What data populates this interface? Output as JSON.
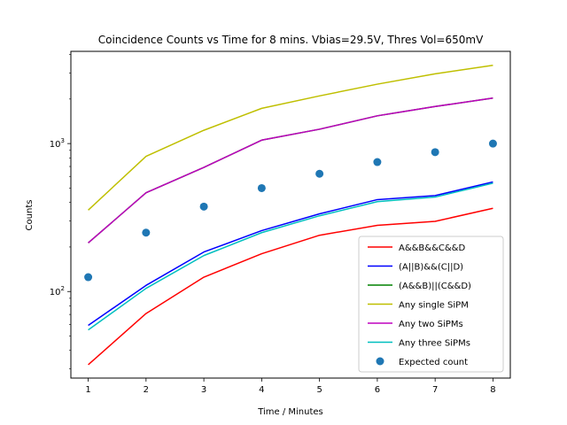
{
  "chart_data": {
    "type": "line",
    "title": "Coincidence Counts vs Time for 8 mins. Vbias=29.5V, Thres Vol=650mV",
    "xlabel": "Time / Minutes",
    "ylabel": "Counts",
    "yscale": "log",
    "xlim": [
      0.7,
      8.3
    ],
    "ylim": [
      26,
      4200
    ],
    "x": [
      1,
      2,
      3,
      4,
      5,
      6,
      7,
      8
    ],
    "x_ticks": [
      1,
      2,
      3,
      4,
      5,
      6,
      7,
      8
    ],
    "y_ticks": [
      {
        "value": 100,
        "base": "10",
        "exp": "2"
      },
      {
        "value": 1000,
        "base": "10",
        "exp": "3"
      }
    ],
    "grid": false,
    "legend_position": "lower right",
    "series": [
      {
        "name": "A&&B&&C&&D",
        "color": "#ff0000",
        "kind": "line",
        "values": [
          32,
          71,
          125,
          180,
          240,
          280,
          298,
          365
        ]
      },
      {
        "name": "(A||B)&&(C||D)",
        "color": "#0000ff",
        "kind": "line",
        "values": [
          59,
          110,
          185,
          258,
          335,
          418,
          445,
          550
        ]
      },
      {
        "name": "(A&&B)||(C&&D)",
        "color": "#008000",
        "kind": "line",
        "values": [
          213,
          465,
          690,
          1055,
          1250,
          1540,
          1780,
          2030
        ]
      },
      {
        "name": "Any single SiPM",
        "color": "#bfbf00",
        "kind": "line",
        "values": [
          355,
          820,
          1230,
          1730,
          2100,
          2520,
          2960,
          3380
        ]
      },
      {
        "name": "Any two SiPMs",
        "color": "#bf00bf",
        "kind": "line",
        "values": [
          213,
          465,
          690,
          1055,
          1250,
          1540,
          1780,
          2030
        ]
      },
      {
        "name": "Any three SiPMs",
        "color": "#00bfbf",
        "kind": "line",
        "values": [
          55,
          105,
          175,
          250,
          325,
          405,
          435,
          540
        ]
      },
      {
        "name": "Expected count",
        "color": "#1f77b4",
        "kind": "scatter",
        "values": [
          125,
          250,
          375,
          500,
          625,
          750,
          875,
          1000
        ]
      }
    ]
  }
}
